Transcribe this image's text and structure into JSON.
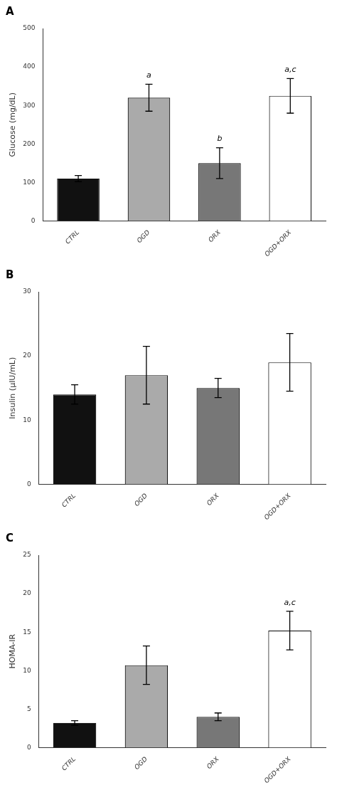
{
  "chart_data": [
    {
      "type": "bar",
      "title": "A",
      "ylabel": "Glucose (mg/dL)",
      "categories": [
        "CTRL",
        "OGD",
        "ORX",
        "OGD+ORX"
      ],
      "values": [
        110,
        320,
        150,
        325
      ],
      "errors": [
        8,
        35,
        40,
        45
      ],
      "colors": [
        "#111111",
        "#aaaaaa",
        "#777777",
        "#ffffff"
      ],
      "ylim": [
        0,
        500
      ],
      "yticks": [
        0,
        100,
        200,
        300,
        400,
        500
      ],
      "grid": false,
      "annotations": [
        {
          "category": "OGD",
          "text": "a",
          "y": 368
        },
        {
          "category": "ORX",
          "text": "b",
          "y": 203
        },
        {
          "category": "OGD+ORX",
          "text": "a,c",
          "y": 383
        }
      ]
    },
    {
      "type": "bar",
      "title": "B",
      "ylabel": "Insulin (μIU/mL)",
      "categories": [
        "CTRL",
        "OGD",
        "ORX",
        "OGD+ORX"
      ],
      "values": [
        14,
        17,
        15,
        19
      ],
      "errors": [
        1.5,
        4.5,
        1.5,
        4.5
      ],
      "colors": [
        "#111111",
        "#aaaaaa",
        "#777777",
        "#ffffff"
      ],
      "ylim": [
        0,
        30
      ],
      "yticks": [
        0,
        10,
        20,
        30
      ],
      "grid": false
    },
    {
      "type": "bar",
      "title": "C",
      "ylabel": "HOMA-IR",
      "categories": [
        "CTRL",
        "OGD",
        "ORX",
        "OGD+ORX"
      ],
      "values": [
        3.2,
        10.7,
        4.0,
        15.2
      ],
      "errors": [
        0.3,
        2.5,
        0.5,
        2.5
      ],
      "colors": [
        "#111111",
        "#aaaaaa",
        "#777777",
        "#ffffff"
      ],
      "ylim": [
        0,
        25
      ],
      "yticks": [
        0,
        5,
        10,
        15,
        20,
        25
      ],
      "grid": false,
      "annotations": [
        {
          "category": "OGD+ORX",
          "text": "a,c",
          "y": 18.3
        }
      ]
    }
  ]
}
